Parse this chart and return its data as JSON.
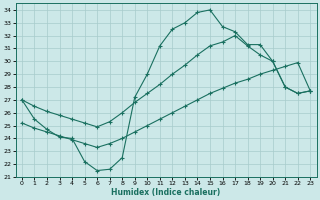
{
  "bg_color": "#cce8e8",
  "line_color": "#1a7060",
  "xlabel": "Humidex (Indice chaleur)",
  "xlim": [
    -0.5,
    23.5
  ],
  "ylim": [
    21,
    34.5
  ],
  "xticks": [
    0,
    1,
    2,
    3,
    4,
    5,
    6,
    7,
    8,
    9,
    10,
    11,
    12,
    13,
    14,
    15,
    16,
    17,
    18,
    19,
    20,
    21,
    22,
    23
  ],
  "yticks": [
    21,
    22,
    23,
    24,
    25,
    26,
    27,
    28,
    29,
    30,
    31,
    32,
    33,
    34
  ],
  "curve1_x": [
    0,
    1,
    2,
    3,
    4,
    5,
    6,
    7,
    8,
    9,
    10,
    11,
    12,
    13,
    14,
    15,
    16,
    17,
    18,
    19,
    20,
    21,
    22,
    23
  ],
  "curve1_y": [
    27.0,
    25.5,
    24.7,
    24.1,
    24.0,
    22.2,
    21.5,
    21.6,
    22.5,
    27.2,
    29.0,
    31.2,
    32.5,
    33.0,
    33.8,
    34.0,
    32.7,
    32.3,
    31.3,
    31.3,
    30.0,
    28.0,
    27.5,
    27.7
  ],
  "curve2_x": [
    0,
    1,
    2,
    3,
    4,
    5,
    6,
    7,
    8,
    9,
    10,
    11,
    12,
    13,
    14,
    15,
    16,
    17,
    18,
    19,
    20,
    21,
    22,
    23
  ],
  "curve2_y": [
    27.0,
    26.5,
    26.1,
    25.8,
    25.5,
    25.2,
    24.9,
    25.3,
    26.0,
    26.8,
    27.5,
    28.2,
    29.0,
    29.7,
    30.5,
    31.2,
    31.5,
    32.0,
    31.2,
    30.5,
    30.0,
    28.0,
    27.5,
    27.7
  ],
  "curve3_x": [
    0,
    1,
    2,
    3,
    4,
    5,
    6,
    7,
    8,
    9,
    10,
    11,
    12,
    13,
    14,
    15,
    16,
    17,
    18,
    19,
    20,
    21,
    22,
    23
  ],
  "curve3_y": [
    25.2,
    24.8,
    24.5,
    24.2,
    23.9,
    23.6,
    23.3,
    23.6,
    24.0,
    24.5,
    25.0,
    25.5,
    26.0,
    26.5,
    27.0,
    27.5,
    27.9,
    28.3,
    28.6,
    29.0,
    29.3,
    29.6,
    29.9,
    27.7
  ]
}
